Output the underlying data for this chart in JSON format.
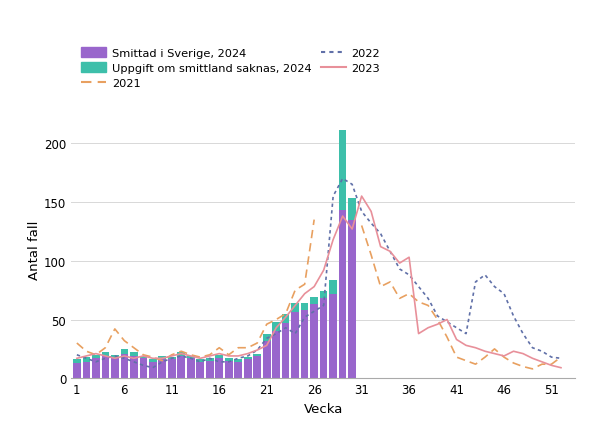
{
  "weeks": [
    1,
    2,
    3,
    4,
    5,
    6,
    7,
    8,
    9,
    10,
    11,
    12,
    13,
    14,
    15,
    16,
    17,
    18,
    19,
    20,
    21,
    22,
    23,
    24,
    25,
    26,
    27,
    28,
    29,
    30
  ],
  "bar_sweden": [
    13,
    14,
    17,
    19,
    17,
    21,
    19,
    17,
    14,
    16,
    16,
    19,
    17,
    14,
    15,
    17,
    15,
    14,
    16,
    19,
    32,
    40,
    47,
    56,
    58,
    63,
    68,
    72,
    143,
    135
  ],
  "bar_unknown": [
    3,
    4,
    3,
    3,
    3,
    4,
    3,
    2,
    2,
    3,
    2,
    3,
    2,
    2,
    2,
    3,
    2,
    2,
    2,
    2,
    6,
    8,
    8,
    8,
    6,
    6,
    6,
    12,
    68,
    18
  ],
  "line_2021": [
    30,
    23,
    20,
    26,
    42,
    32,
    26,
    20,
    18,
    15,
    20,
    23,
    20,
    18,
    20,
    26,
    20,
    26,
    26,
    30,
    46,
    50,
    55,
    75,
    80,
    135,
    null,
    null,
    null,
    null,
    null,
    null,
    null,
    null,
    null,
    null,
    null,
    null,
    null,
    null,
    null,
    null,
    null,
    null,
    null,
    null,
    null,
    null,
    null,
    null,
    null,
    null
  ],
  "line_2021_right": [
    null,
    null,
    null,
    null,
    null,
    null,
    null,
    null,
    null,
    null,
    null,
    null,
    null,
    null,
    null,
    null,
    null,
    null,
    null,
    null,
    null,
    null,
    null,
    null,
    null,
    null,
    null,
    null,
    null,
    null,
    130,
    105,
    78,
    82,
    68,
    72,
    65,
    62,
    50,
    35,
    18,
    15,
    12,
    18,
    25,
    18,
    13,
    10,
    8,
    12,
    12,
    18
  ],
  "line_2022": [
    20,
    17,
    14,
    17,
    19,
    17,
    14,
    11,
    9,
    14,
    17,
    19,
    17,
    14,
    17,
    14,
    14,
    17,
    19,
    24,
    34,
    38,
    43,
    38,
    52,
    57,
    62,
    155,
    170,
    165,
    142,
    132,
    123,
    108,
    93,
    88,
    78,
    68,
    53,
    48,
    43,
    38,
    82,
    88,
    78,
    72,
    53,
    38,
    26,
    23,
    18,
    17
  ],
  "line_2023": [
    17,
    19,
    21,
    19,
    17,
    19,
    17,
    19,
    17,
    17,
    19,
    21,
    19,
    17,
    19,
    21,
    19,
    19,
    21,
    24,
    28,
    43,
    52,
    62,
    72,
    78,
    92,
    118,
    138,
    127,
    155,
    142,
    112,
    108,
    98,
    103,
    38,
    43,
    46,
    50,
    33,
    28,
    26,
    23,
    21,
    19,
    23,
    21,
    17,
    14,
    11,
    9
  ],
  "color_bar_sweden": "#9966cc",
  "color_bar_unknown": "#3dbfaa",
  "color_2021": "#e8a060",
  "color_2022": "#6070a8",
  "color_2023": "#e8909a",
  "ylabel": "Antal fall",
  "xlabel": "Vecka",
  "xticks": [
    1,
    6,
    11,
    16,
    21,
    26,
    31,
    36,
    41,
    46,
    51
  ],
  "yticks": [
    0,
    50,
    100,
    150,
    200
  ],
  "ylim": [
    0,
    220
  ],
  "xlim": [
    0.4,
    53.5
  ],
  "legend_labels": [
    "Smittad i Sverige, 2024",
    "Uppgift om smittland saknas, 2024",
    "2021",
    "2022",
    "2023"
  ]
}
